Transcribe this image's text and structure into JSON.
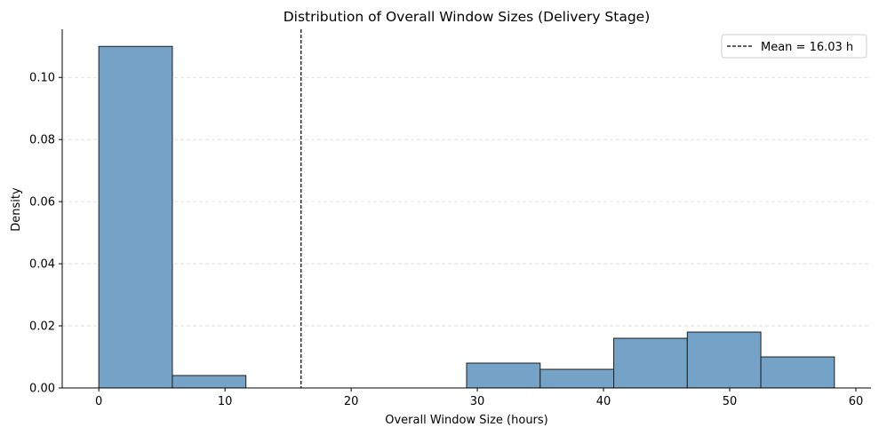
{
  "chart_data": {
    "type": "bar",
    "title": "Distribution of Overall Window Sizes (Delivery Stage)",
    "xlabel": "Overall Window Size (hours)",
    "ylabel": "Density",
    "xlim": [
      -2.9,
      61.2
    ],
    "ylim": [
      0,
      0.1155
    ],
    "xticks": [
      0,
      10,
      20,
      30,
      40,
      50,
      60
    ],
    "yticks": [
      0.0,
      0.02,
      0.04,
      0.06,
      0.08,
      0.1
    ],
    "ytick_labels": [
      "0.00",
      "0.02",
      "0.04",
      "0.06",
      "0.08",
      "0.10"
    ],
    "bins": [
      {
        "x0": 0.0,
        "x1": 5.83,
        "density": 0.11
      },
      {
        "x0": 5.83,
        "x1": 11.66,
        "density": 0.004
      },
      {
        "x0": 11.66,
        "x1": 17.49,
        "density": 0.0
      },
      {
        "x0": 17.49,
        "x1": 23.32,
        "density": 0.0
      },
      {
        "x0": 23.32,
        "x1": 29.15,
        "density": 0.0
      },
      {
        "x0": 29.15,
        "x1": 34.98,
        "density": 0.008
      },
      {
        "x0": 34.98,
        "x1": 40.81,
        "density": 0.006
      },
      {
        "x0": 40.81,
        "x1": 46.64,
        "density": 0.016
      },
      {
        "x0": 46.64,
        "x1": 52.47,
        "density": 0.018
      },
      {
        "x0": 52.47,
        "x1": 58.3,
        "density": 0.01
      }
    ],
    "mean": 16.03,
    "legend": {
      "label": "Mean = 16.03 h",
      "position": "upper right"
    },
    "grid": {
      "axis": "y",
      "style": "dashed"
    },
    "colors": {
      "bar_fill": "#74a3c7",
      "bar_edge": "#1f1f1f",
      "mean_line": "#000000",
      "grid": "#d9d9d9"
    }
  }
}
